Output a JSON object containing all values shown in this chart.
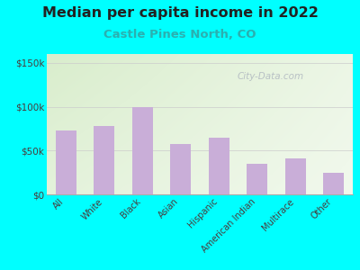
{
  "title": "Median per capita income in 2022",
  "subtitle": "Castle Pines North, CO",
  "categories": [
    "All",
    "White",
    "Black",
    "Asian",
    "Hispanic",
    "American Indian",
    "Multirace",
    "Other"
  ],
  "values": [
    73000,
    78000,
    99000,
    57000,
    65000,
    35000,
    41000,
    25000
  ],
  "bar_color": "#c9aed8",
  "title_fontsize": 11.5,
  "subtitle_fontsize": 9.5,
  "subtitle_color": "#2ab0b0",
  "title_color": "#222222",
  "tick_color": "#4a3a3a",
  "bg_outer": "#00FFFF",
  "bg_chart_topleft": "#d8edcc",
  "bg_chart_bottomright": "#f8fff8",
  "ylim": [
    0,
    160000
  ],
  "yticks": [
    0,
    50000,
    100000,
    150000
  ],
  "ytick_labels": [
    "$0",
    "$50k",
    "$100k",
    "$150k"
  ],
  "watermark": "City-Data.com"
}
